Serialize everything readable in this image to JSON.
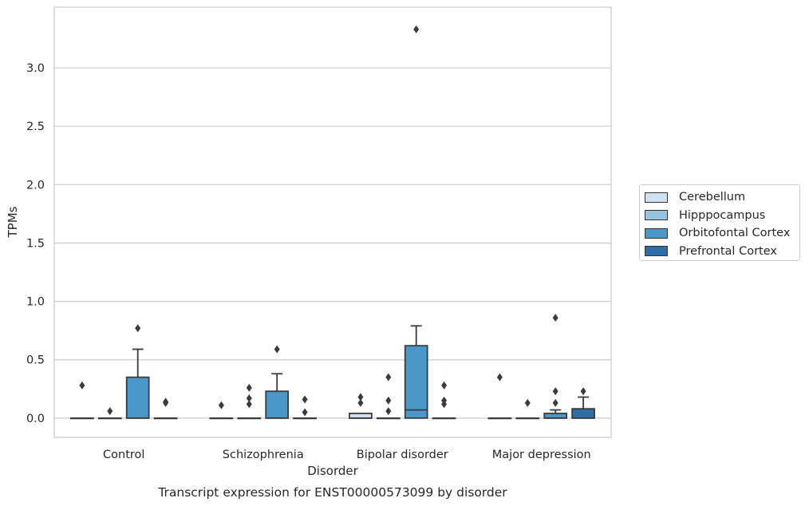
{
  "chart_data": {
    "type": "box",
    "title": "Transcript expression for ENST00000573099 by disorder",
    "xlabel": "Disorder",
    "ylabel": "TPMs",
    "ylim": [
      -0.165,
      3.52
    ],
    "yticks": [
      "0.0",
      "0.5",
      "1.0",
      "1.5",
      "2.0",
      "2.5",
      "3.0"
    ],
    "ytick_values": [
      0,
      0.5,
      1,
      1.5,
      2,
      2.5,
      3
    ],
    "grid": true,
    "legend_position": "right",
    "categories": [
      "Control",
      "Schizophrenia",
      "Bipolar disorder",
      "Major depression"
    ],
    "series": [
      {
        "name": "Cerebellum",
        "color": "#d0e1f2",
        "boxes": [
          {
            "q1": 0,
            "median": 0,
            "q3": 0,
            "whisker_low": 0,
            "whisker_high": 0,
            "outliers": [
              0.28
            ]
          },
          {
            "q1": 0,
            "median": 0,
            "q3": 0,
            "whisker_low": 0,
            "whisker_high": 0,
            "outliers": [
              0.11
            ]
          },
          {
            "q1": 0,
            "median": 0,
            "q3": 0.04,
            "whisker_low": 0,
            "whisker_high": 0.04,
            "outliers": [
              0.13,
              0.18
            ]
          },
          {
            "q1": 0,
            "median": 0,
            "q3": 0,
            "whisker_low": 0,
            "whisker_high": 0,
            "outliers": [
              0.35
            ]
          }
        ]
      },
      {
        "name": "Hipppocampus",
        "color": "#94c4df",
        "boxes": [
          {
            "q1": 0,
            "median": 0,
            "q3": 0,
            "whisker_low": 0,
            "whisker_high": 0,
            "outliers": [
              0.06
            ]
          },
          {
            "q1": 0,
            "median": 0,
            "q3": 0,
            "whisker_low": 0,
            "whisker_high": 0,
            "outliers": [
              0.12,
              0.17,
              0.26
            ]
          },
          {
            "q1": 0,
            "median": 0,
            "q3": 0,
            "whisker_low": 0,
            "whisker_high": 0,
            "outliers": [
              0.06,
              0.15,
              0.35
            ]
          },
          {
            "q1": 0,
            "median": 0,
            "q3": 0,
            "whisker_low": 0,
            "whisker_high": 0,
            "outliers": [
              0.13
            ]
          }
        ]
      },
      {
        "name": "Orbitofontal Cortex",
        "color": "#4a98c9",
        "boxes": [
          {
            "q1": 0,
            "median": 0,
            "q3": 0.35,
            "whisker_low": 0,
            "whisker_high": 0.59,
            "outliers": [
              0.77
            ]
          },
          {
            "q1": 0,
            "median": 0,
            "q3": 0.23,
            "whisker_low": 0,
            "whisker_high": 0.38,
            "outliers": [
              0.59
            ]
          },
          {
            "q1": 0,
            "median": 0.07,
            "q3": 0.62,
            "whisker_low": 0,
            "whisker_high": 0.79,
            "outliers": [
              3.33
            ]
          },
          {
            "q1": 0,
            "median": 0,
            "q3": 0.04,
            "whisker_low": 0,
            "whisker_high": 0.07,
            "outliers": [
              0.13,
              0.23,
              0.86
            ]
          }
        ]
      },
      {
        "name": "Prefrontal Cortex",
        "color": "#2e6da4",
        "boxes": [
          {
            "q1": 0,
            "median": 0,
            "q3": 0,
            "whisker_low": 0,
            "whisker_high": 0,
            "outliers": [
              0.13,
              0.14
            ]
          },
          {
            "q1": 0,
            "median": 0,
            "q3": 0,
            "whisker_low": 0,
            "whisker_high": 0,
            "outliers": [
              0.05,
              0.16
            ]
          },
          {
            "q1": 0,
            "median": 0,
            "q3": 0,
            "whisker_low": 0,
            "whisker_high": 0,
            "outliers": [
              0.12,
              0.15,
              0.28
            ]
          },
          {
            "q1": 0,
            "median": 0,
            "q3": 0.08,
            "whisker_low": 0,
            "whisker_high": 0.18,
            "outliers": [
              0.23
            ]
          }
        ]
      }
    ]
  }
}
